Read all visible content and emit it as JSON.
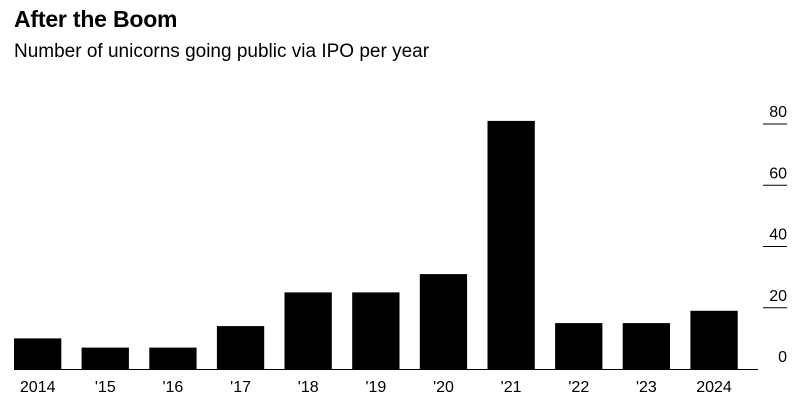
{
  "chart_data": {
    "type": "bar",
    "title": "After the Boom",
    "subtitle": "Number of unicorns going public via IPO per year",
    "categories": [
      "2014",
      "'15",
      "'16",
      "'17",
      "'18",
      "'19",
      "'20",
      "'21",
      "'22",
      "'23",
      "2024"
    ],
    "values": [
      10,
      7,
      7,
      14,
      25,
      25,
      31,
      81,
      15,
      15,
      19
    ],
    "ylim": [
      0,
      80
    ],
    "yticks": [
      0,
      20,
      40,
      60,
      80
    ],
    "yaxis_position": "right",
    "grid": false,
    "bar_color": "#000000"
  }
}
